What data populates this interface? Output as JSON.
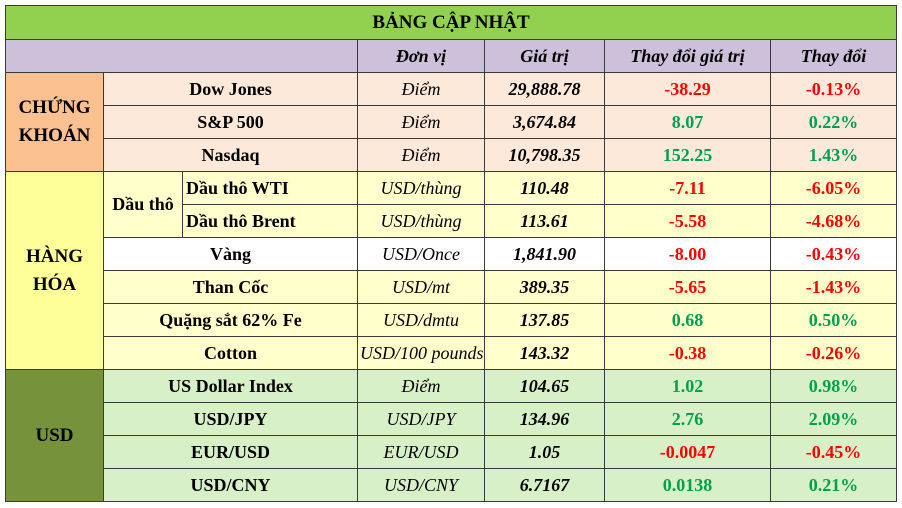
{
  "title": "BẢNG CẬP NHẬT",
  "headers": {
    "unit": "Đơn vị",
    "value": "Giá trị",
    "change_value": "Thay đổi giá trị",
    "change_pct": "Thay đổi"
  },
  "groups": {
    "stocks": "CHỨNG KHOÁN",
    "commodities": "HÀNG HÓA",
    "usd": "USD",
    "oil": "Dầu thô"
  },
  "rows": [
    {
      "name": "Dow Jones",
      "unit": "Điểm",
      "value": "29,888.78",
      "change": "-38.29",
      "pct": "-0.13%"
    },
    {
      "name": "S&P 500",
      "unit": "Điểm",
      "value": "3,674.84",
      "change": "8.07",
      "pct": "0.22%"
    },
    {
      "name": "Nasdaq",
      "unit": "Điểm",
      "value": "10,798.35",
      "change": "152.25",
      "pct": "1.43%"
    },
    {
      "name": "Dầu thô WTI",
      "unit": "USD/thùng",
      "value": "110.48",
      "change": "-7.11",
      "pct": "-6.05%"
    },
    {
      "name": "Dầu thô Brent",
      "unit": "USD/thùng",
      "value": "113.61",
      "change": "-5.58",
      "pct": "-4.68%"
    },
    {
      "name": "Vàng",
      "unit": "USD/Once",
      "value": "1,841.90",
      "change": "-8.00",
      "pct": "-0.43%"
    },
    {
      "name": "Than Cốc",
      "unit": "USD/mt",
      "value": "389.35",
      "change": "-5.65",
      "pct": "-1.43%"
    },
    {
      "name": "Quặng sắt 62% Fe",
      "unit": "USD/dmtu",
      "value": "137.85",
      "change": "0.68",
      "pct": "0.50%"
    },
    {
      "name": "Cotton",
      "unit": "USD/100 pounds",
      "value": "143.32",
      "change": "-0.38",
      "pct": "-0.26%"
    },
    {
      "name": "US Dollar Index",
      "unit": "Điểm",
      "value": "104.65",
      "change": "1.02",
      "pct": "0.98%"
    },
    {
      "name": "USD/JPY",
      "unit": "USD/JPY",
      "value": "134.96",
      "change": "2.76",
      "pct": "2.09%"
    },
    {
      "name": "EUR/USD",
      "unit": "EUR/USD",
      "value": "1.05",
      "change": "-0.0047",
      "pct": "-0.45%"
    },
    {
      "name": "USD/CNY",
      "unit": "USD/CNY",
      "value": "6.7167",
      "change": "0.0138",
      "pct": "0.21%"
    }
  ],
  "colors": {
    "positive": "#00a050",
    "negative": "#ff0000",
    "title_bg": "#92d050",
    "header_bg": "#ccc0da",
    "stocks_group_bg": "#fac090",
    "commodities_group_bg": "#ffff99",
    "usd_group_bg": "#76933c"
  }
}
